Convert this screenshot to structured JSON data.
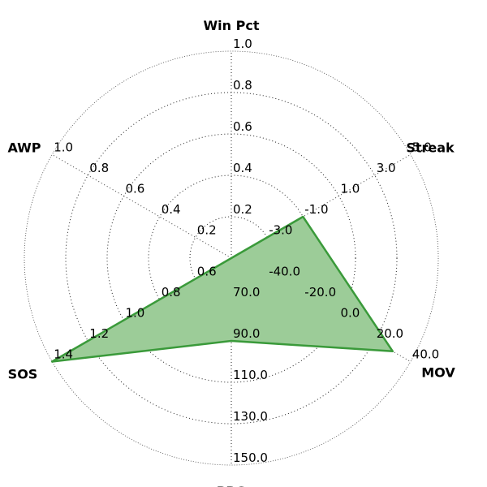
{
  "chart_data": {
    "type": "radar",
    "axes": [
      {
        "label": "Win Pct",
        "ticks": [
          "0.2",
          "0.4",
          "0.6",
          "0.8",
          "1.0"
        ],
        "min": 0.0,
        "max": 1.0,
        "value": 0.0
      },
      {
        "label": "Streak",
        "ticks": [
          "-3.0",
          "-1.0",
          "1.0",
          "3.0",
          "5.0"
        ],
        "min": -5.0,
        "max": 5.0,
        "value": -1.0
      },
      {
        "label": "MOV",
        "ticks": [
          "-40.0",
          "-20.0",
          "0.0",
          "20.0",
          "40.0"
        ],
        "min": -60.0,
        "max": 40.0,
        "value": 30.0
      },
      {
        "label": "PPG",
        "ticks": [
          "70.0",
          "90.0",
          "110.0",
          "130.0",
          "150.0"
        ],
        "min": 50.0,
        "max": 150.0,
        "value": 90.0
      },
      {
        "label": "SOS",
        "ticks": [
          "0.6",
          "0.8",
          "1.0",
          "1.2",
          "1.4"
        ],
        "min": 0.4,
        "max": 1.4,
        "value": 1.4
      },
      {
        "label": "AWP",
        "ticks": [
          "0.2",
          "0.4",
          "0.6",
          "0.8",
          "1.0"
        ],
        "min": 0.0,
        "max": 1.0,
        "value": 0.0
      }
    ],
    "series": [
      {
        "values": [
          0.0,
          -1.0,
          30.0,
          90.0,
          1.4,
          0.0
        ]
      }
    ],
    "fill_color": "#9ccc98",
    "line_color": "#3a9a3a",
    "grid": true,
    "legend": "none"
  }
}
